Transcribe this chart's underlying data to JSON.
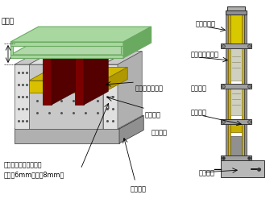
{
  "bg_color": "#ffffff",
  "labels": {
    "kasamage": "崩上げ",
    "kantsuu_bolt": "貫通ボルト",
    "nekigome_mortar": "根固めモルタル",
    "kisetu_kouran": "既設高欄",
    "mortar": "モルタル",
    "cement_board": "高韧性セメントボード",
    "cement_board2": "（単な6mmまたは8mm）",
    "anchor": "アンカー"
  },
  "colors": {
    "green_top": "#a8d8a0",
    "green_dark": "#6aaa60",
    "dark_red": "#7a0000",
    "yellow": "#d8c000",
    "yellow_dark": "#b09800",
    "gray1": "#e0e0e0",
    "gray2": "#c8c8c8",
    "gray3": "#b0b0b0",
    "gray4": "#909090",
    "gray5": "#707070",
    "gray6": "#505050",
    "white": "#ffffff",
    "black": "#000000",
    "gold": "#c8b400",
    "gold_dark": "#a09000"
  }
}
